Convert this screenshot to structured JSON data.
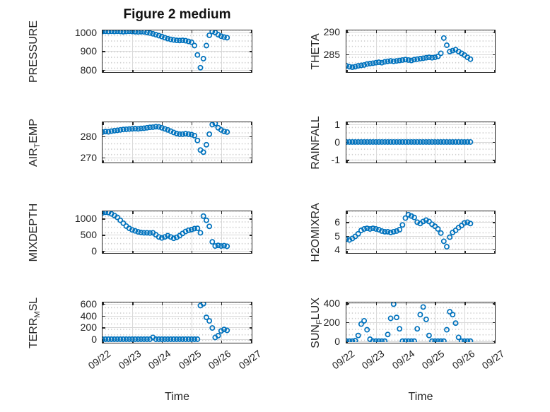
{
  "figure": {
    "title": "Figure 2 medium",
    "marker_color": "#0072BD",
    "axis_color": "#262626",
    "grid_color": "#d9d9d9",
    "background": "#ffffff",
    "marker": "open-circle"
  },
  "time_axis": {
    "label": "Time",
    "tick_labels": [
      "09/22",
      "09/23",
      "09/24",
      "09/25",
      "09/26",
      "09/27"
    ],
    "range_days": [
      0,
      5
    ]
  },
  "chart_data": {
    "type": "scatter",
    "grid": "major-solid minor-dotted",
    "t_days_since_0922": [
      0,
      0.1,
      0.2,
      0.3,
      0.4,
      0.5,
      0.6,
      0.7,
      0.8,
      0.9,
      1,
      1.1,
      1.2,
      1.3,
      1.4,
      1.5,
      1.6,
      1.7,
      1.8,
      1.9,
      2,
      2.1,
      2.2,
      2.3,
      2.4,
      2.5,
      2.6,
      2.7,
      2.8,
      2.9,
      3,
      3.1,
      3.2,
      3.3,
      3.4,
      3.5,
      3.6,
      3.7,
      3.8,
      3.9,
      4,
      4.1,
      4.2
    ],
    "subplots": [
      {
        "name": "pressure",
        "row": 0,
        "col": 0,
        "ylabel_pre": "PRESSURE",
        "ylabel_sub": "",
        "ylabel_post": "",
        "yticks": [
          800,
          900,
          1000
        ],
        "ylim": [
          793,
          1011
        ],
        "values": [
          1005,
          1006,
          1005,
          1006,
          1005,
          1006,
          1005,
          1004,
          1005,
          1006,
          1005,
          1004,
          1003,
          1004,
          1003,
          1000,
          997,
          993,
          988,
          983,
          978,
          972,
          967,
          963,
          960,
          958,
          957,
          958,
          956,
          952,
          948,
          930,
          880,
          812,
          860,
          930,
          985,
          1005,
          1000,
          988,
          980,
          975,
          972
        ]
      },
      {
        "name": "theta",
        "row": 0,
        "col": 1,
        "ylabel_pre": "THETA",
        "ylabel_sub": "",
        "ylabel_post": "",
        "yticks": [
          285,
          290
        ],
        "ylim": [
          281.2,
          290.3
        ],
        "values": [
          282.4,
          282.2,
          282.1,
          282.2,
          282.4,
          282.5,
          282.6,
          282.8,
          282.9,
          283,
          283.1,
          283.2,
          283.1,
          283.3,
          283.4,
          283.5,
          283.4,
          283.5,
          283.6,
          283.7,
          283.8,
          283.7,
          283.6,
          283.8,
          283.9,
          284,
          284.1,
          284.2,
          284.3,
          284.2,
          284.3,
          284.5,
          285.2,
          288.6,
          287,
          285.6,
          285.8,
          286,
          285.6,
          285.2,
          284.8,
          284.3,
          283.9
        ]
      },
      {
        "name": "air-temp",
        "row": 1,
        "col": 0,
        "ylabel_pre": "AIR",
        "ylabel_sub": "T",
        "ylabel_post": "EMP",
        "yticks": [
          270,
          280
        ],
        "ylim": [
          268,
          286.6
        ],
        "values": [
          282,
          282.2,
          282.1,
          282.4,
          282.6,
          282.8,
          283,
          283.2,
          283.3,
          283.4,
          283.5,
          283.6,
          283.5,
          283.7,
          283.8,
          284,
          284.2,
          284.3,
          284.5,
          284.4,
          284,
          283.5,
          283,
          282.4,
          281.8,
          281.3,
          281,
          281,
          281.2,
          281,
          280.8,
          280.3,
          278,
          273.5,
          272.5,
          276,
          281,
          285.5,
          286,
          284,
          283,
          282.3,
          282
        ]
      },
      {
        "name": "rainfall",
        "row": 1,
        "col": 1,
        "ylabel_pre": "RAINFALL",
        "ylabel_sub": "",
        "ylabel_post": "",
        "yticks": [
          -1,
          0,
          1
        ],
        "ylim": [
          -1.1,
          1.1
        ],
        "values": [
          0,
          0,
          0,
          0,
          0,
          0,
          0,
          0,
          0,
          0,
          0,
          0,
          0,
          0,
          0,
          0,
          0,
          0,
          0,
          0,
          0,
          0,
          0,
          0,
          0,
          0,
          0,
          0,
          0,
          0,
          0,
          0,
          0,
          0,
          0,
          0,
          0,
          0,
          0,
          0,
          0,
          0,
          0
        ]
      },
      {
        "name": "mixdepth",
        "row": 2,
        "col": 0,
        "ylabel_pre": "MIXDEPTH",
        "ylabel_sub": "",
        "ylabel_post": "",
        "yticks": [
          0,
          500,
          1000
        ],
        "ylim": [
          -42,
          1229
        ],
        "values": [
          1180,
          1200,
          1190,
          1150,
          1100,
          1040,
          950,
          860,
          770,
          700,
          650,
          620,
          590,
          570,
          560,
          560,
          555,
          560,
          500,
          430,
          400,
          430,
          470,
          430,
          390,
          420,
          470,
          540,
          600,
          640,
          660,
          690,
          700,
          560,
          1080,
          950,
          760,
          280,
          150,
          170,
          150,
          160,
          140
        ]
      },
      {
        "name": "h2omixra",
        "row": 2,
        "col": 1,
        "ylabel_pre": "H2OMIXRA",
        "ylabel_sub": "",
        "ylabel_post": "",
        "yticks": [
          4,
          5,
          6
        ],
        "ylim": [
          3.8,
          6.8
        ],
        "values": [
          4.75,
          4.7,
          4.8,
          4.95,
          5.15,
          5.4,
          5.5,
          5.55,
          5.5,
          5.55,
          5.5,
          5.45,
          5.35,
          5.3,
          5.3,
          5.25,
          5.3,
          5.35,
          5.45,
          5.8,
          6.3,
          6.55,
          6.45,
          6.35,
          6,
          5.9,
          6.05,
          6.15,
          6.05,
          5.85,
          5.7,
          5.5,
          5.2,
          4.6,
          4.2,
          4.9,
          5.25,
          5.4,
          5.6,
          5.75,
          5.95,
          6,
          5.9
        ]
      },
      {
        "name": "terr-msl",
        "row": 3,
        "col": 0,
        "ylabel_pre": "TERR",
        "ylabel_sub": "M",
        "ylabel_post": "SL",
        "yticks": [
          0,
          200,
          400,
          600
        ],
        "ylim": [
          -45,
          622
        ],
        "values": [
          0,
          0,
          0,
          0,
          0,
          0,
          0,
          0,
          0,
          0,
          0,
          0,
          0,
          0,
          0,
          0,
          0,
          30,
          0,
          0,
          0,
          0,
          0,
          0,
          0,
          0,
          0,
          0,
          0,
          0,
          0,
          0,
          0,
          570,
          600,
          370,
          310,
          190,
          30,
          60,
          140,
          165,
          150
        ]
      },
      {
        "name": "sun-flux",
        "row": 3,
        "col": 1,
        "ylabel_pre": "SUN",
        "ylabel_sub": "F",
        "ylabel_post": "LUX",
        "yticks": [
          0,
          200,
          400
        ],
        "ylim": [
          -8,
          408
        ],
        "values": [
          0,
          0,
          0,
          5,
          60,
          180,
          215,
          120,
          20,
          0,
          0,
          0,
          0,
          0,
          70,
          240,
          390,
          250,
          130,
          0,
          0,
          0,
          0,
          0,
          130,
          280,
          360,
          230,
          60,
          0,
          0,
          0,
          0,
          0,
          120,
          310,
          280,
          190,
          40,
          0,
          0,
          0,
          0
        ]
      }
    ]
  }
}
